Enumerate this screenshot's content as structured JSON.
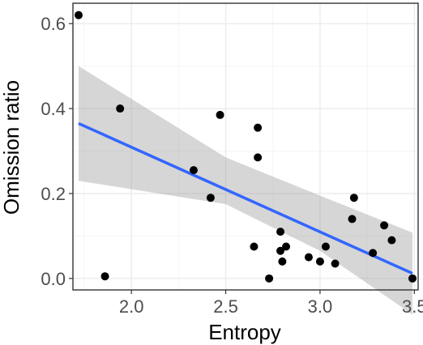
{
  "chart_data": {
    "type": "scatter",
    "xlabel": "Entropy",
    "ylabel": "Omission ratio",
    "xlim": [
      1.69,
      3.52
    ],
    "ylim": [
      -0.027,
      0.648
    ],
    "xticks": [
      2.0,
      2.5,
      3.0,
      3.5
    ],
    "yticks": [
      0.0,
      0.2,
      0.4,
      0.6
    ],
    "xtick_labels": [
      "2.0",
      "2.5",
      "3.0",
      "3.5"
    ],
    "ytick_labels": [
      "0.0",
      "0.2",
      "0.4",
      "0.6"
    ],
    "grid": true,
    "points": [
      {
        "x": 1.72,
        "y": 0.62
      },
      {
        "x": 1.86,
        "y": 0.005
      },
      {
        "x": 1.94,
        "y": 0.4
      },
      {
        "x": 2.33,
        "y": 0.255
      },
      {
        "x": 2.42,
        "y": 0.19
      },
      {
        "x": 2.47,
        "y": 0.385
      },
      {
        "x": 2.65,
        "y": 0.075
      },
      {
        "x": 2.67,
        "y": 0.285
      },
      {
        "x": 2.67,
        "y": 0.355
      },
      {
        "x": 2.73,
        "y": 0.0
      },
      {
        "x": 2.79,
        "y": 0.11
      },
      {
        "x": 2.79,
        "y": 0.065
      },
      {
        "x": 2.8,
        "y": 0.04
      },
      {
        "x": 2.82,
        "y": 0.075
      },
      {
        "x": 2.94,
        "y": 0.05
      },
      {
        "x": 3.0,
        "y": 0.04
      },
      {
        "x": 3.03,
        "y": 0.075
      },
      {
        "x": 3.08,
        "y": 0.035
      },
      {
        "x": 3.17,
        "y": 0.14
      },
      {
        "x": 3.18,
        "y": 0.19
      },
      {
        "x": 3.28,
        "y": 0.06
      },
      {
        "x": 3.34,
        "y": 0.125
      },
      {
        "x": 3.38,
        "y": 0.09
      },
      {
        "x": 3.49,
        "y": 0.0
      }
    ],
    "regression": {
      "method": "linear",
      "x": [
        1.72,
        3.49
      ],
      "y": [
        0.365,
        0.012
      ]
    },
    "confidence_band": {
      "x": [
        1.72,
        2.5,
        3.0,
        3.49
      ],
      "upper": [
        0.5,
        0.285,
        0.195,
        0.108
      ],
      "lower": [
        0.23,
        0.175,
        0.065,
        -0.085
      ]
    },
    "colors": {
      "panel_border": "#333333",
      "grid_major": "#ebebeb",
      "grid_minor": "#f5f5f5",
      "points": "#000000",
      "line": "#3366ff",
      "band": "#999999"
    }
  }
}
